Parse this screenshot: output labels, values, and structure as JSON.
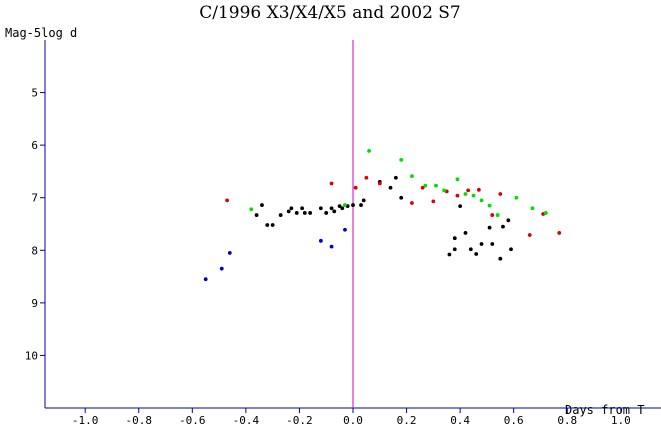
{
  "chart_data": {
    "type": "scatter",
    "title": "C/1996 X3/X4/X5 and 2002 S7",
    "xlabel": "Days from T",
    "ylabel": "Mag-5log d",
    "xlim": [
      -1.15,
      1.15
    ],
    "ylim": [
      11.0,
      4.0
    ],
    "y_inverted": true,
    "x_ticks": [
      -1.0,
      -0.8,
      -0.6,
      -0.4,
      -0.2,
      0.0,
      0.2,
      0.4,
      0.6,
      0.8,
      1.0
    ],
    "x_tick_labels": [
      "-1.0",
      "-0.8",
      "-0.6",
      "-0.4",
      "-0.2",
      "0.0",
      "0.2",
      "0.4",
      "0.6",
      "0.8",
      "1.0"
    ],
    "y_ticks": [
      5,
      6,
      7,
      8,
      9,
      10
    ],
    "y_tick_labels": [
      "5",
      "6",
      "7",
      "8",
      "9",
      "10"
    ],
    "grid": false,
    "legend": "none",
    "perihelion_line": {
      "x": 0.0,
      "color": "#cc00cc"
    },
    "axis_color": "#0000aa",
    "series": [
      {
        "color": "#000000",
        "points": [
          [
            -0.36,
            7.33
          ],
          [
            -0.34,
            7.14
          ],
          [
            -0.32,
            7.52
          ],
          [
            -0.3,
            7.52
          ],
          [
            -0.27,
            7.33
          ],
          [
            -0.24,
            7.26
          ],
          [
            -0.23,
            7.2
          ],
          [
            -0.21,
            7.29
          ],
          [
            -0.19,
            7.2
          ],
          [
            -0.18,
            7.29
          ],
          [
            -0.16,
            7.29
          ],
          [
            -0.12,
            7.2
          ],
          [
            -0.1,
            7.29
          ],
          [
            -0.08,
            7.2
          ],
          [
            -0.07,
            7.26
          ],
          [
            -0.05,
            7.16
          ],
          [
            -0.04,
            7.2
          ],
          [
            -0.02,
            7.16
          ],
          [
            0.0,
            7.14
          ],
          [
            0.03,
            7.14
          ],
          [
            0.04,
            7.05
          ],
          [
            0.1,
            6.7
          ],
          [
            0.14,
            6.81
          ],
          [
            0.16,
            6.62
          ],
          [
            0.18,
            7.0
          ],
          [
            0.36,
            8.08
          ],
          [
            0.38,
            7.98
          ],
          [
            0.38,
            7.77
          ],
          [
            0.4,
            7.16
          ],
          [
            0.42,
            7.67
          ],
          [
            0.44,
            7.98
          ],
          [
            0.46,
            8.07
          ],
          [
            0.48,
            7.88
          ],
          [
            0.51,
            7.57
          ],
          [
            0.52,
            7.88
          ],
          [
            0.55,
            8.16
          ],
          [
            0.56,
            7.55
          ],
          [
            0.58,
            7.43
          ],
          [
            0.59,
            7.98
          ]
        ]
      },
      {
        "color": "#dd0000",
        "points": [
          [
            -0.47,
            7.05
          ],
          [
            -0.08,
            6.73
          ],
          [
            0.01,
            6.81
          ],
          [
            0.05,
            6.62
          ],
          [
            0.1,
            6.73
          ],
          [
            0.22,
            7.1
          ],
          [
            0.26,
            6.81
          ],
          [
            0.3,
            7.07
          ],
          [
            0.35,
            6.88
          ],
          [
            0.39,
            6.96
          ],
          [
            0.43,
            6.86
          ],
          [
            0.47,
            6.85
          ],
          [
            0.52,
            7.33
          ],
          [
            0.55,
            6.93
          ],
          [
            0.66,
            7.71
          ],
          [
            0.71,
            7.31
          ],
          [
            0.77,
            7.67
          ]
        ]
      },
      {
        "color": "#00dd00",
        "points": [
          [
            -0.38,
            7.22
          ],
          [
            -0.03,
            7.14
          ],
          [
            0.06,
            6.11
          ],
          [
            0.18,
            6.28
          ],
          [
            0.22,
            6.59
          ],
          [
            0.27,
            6.77
          ],
          [
            0.31,
            6.77
          ],
          [
            0.34,
            6.86
          ],
          [
            0.39,
            6.65
          ],
          [
            0.42,
            6.93
          ],
          [
            0.45,
            6.96
          ],
          [
            0.48,
            7.05
          ],
          [
            0.51,
            7.15
          ],
          [
            0.54,
            7.33
          ],
          [
            0.61,
            7.0
          ],
          [
            0.67,
            7.2
          ],
          [
            0.72,
            7.29
          ]
        ]
      },
      {
        "color": "#0000cc",
        "points": [
          [
            -0.55,
            8.55
          ],
          [
            -0.49,
            8.35
          ],
          [
            -0.46,
            8.05
          ],
          [
            -0.12,
            7.82
          ],
          [
            -0.08,
            7.93
          ],
          [
            -0.03,
            7.61
          ]
        ]
      }
    ]
  }
}
